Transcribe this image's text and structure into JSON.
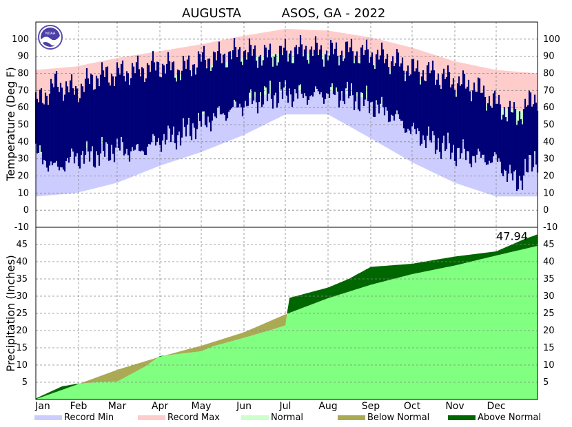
{
  "chart_data": {
    "type": "area",
    "title_left": "AUGUSTA",
    "title_right": "ASOS, GA - 2022",
    "months": [
      "Jan",
      "Feb",
      "Mar",
      "Apr",
      "May",
      "Jun",
      "Jul",
      "Aug",
      "Sep",
      "Oct",
      "Nov",
      "Dec"
    ],
    "days_per_month": [
      31,
      28,
      31,
      30,
      31,
      30,
      31,
      31,
      30,
      31,
      30,
      31
    ],
    "temperature": {
      "ylabel": "Temperature (Deg F)",
      "ylim": [
        -10,
        110
      ],
      "yticks": [
        -10,
        0,
        10,
        20,
        30,
        40,
        50,
        60,
        70,
        80,
        90,
        100
      ],
      "normal_high": {
        "x_day": [
          1,
          30,
          60,
          91,
          121,
          152,
          182,
          213,
          244,
          274,
          305,
          335,
          365
        ],
        "y": [
          57,
          61,
          67,
          76,
          83,
          89,
          92,
          91,
          86,
          78,
          69,
          60,
          57
        ]
      },
      "normal_low": {
        "x_day": [
          1,
          30,
          60,
          91,
          121,
          152,
          182,
          213,
          244,
          274,
          305,
          335,
          365
        ],
        "y": [
          33,
          35,
          41,
          48,
          56,
          65,
          70,
          70,
          65,
          52,
          42,
          35,
          33
        ]
      },
      "record_max": {
        "x_day": [
          1,
          30,
          60,
          91,
          121,
          152,
          182,
          213,
          244,
          274,
          305,
          335,
          365
        ],
        "y": [
          82,
          84,
          89,
          93,
          97,
          102,
          106,
          105,
          101,
          95,
          87,
          82,
          80
        ]
      },
      "record_min": {
        "x_day": [
          1,
          30,
          60,
          91,
          121,
          152,
          182,
          213,
          244,
          274,
          305,
          335,
          365
        ],
        "y": [
          8,
          10,
          16,
          26,
          34,
          44,
          56,
          56,
          42,
          28,
          16,
          8,
          8
        ]
      },
      "observed_high": {
        "x_day": [
          1,
          15,
          30,
          45,
          60,
          75,
          91,
          106,
          121,
          136,
          152,
          167,
          182,
          197,
          213,
          228,
          244,
          259,
          274,
          289,
          305,
          320,
          335,
          350,
          365
        ],
        "y": [
          62,
          74,
          70,
          78,
          80,
          82,
          85,
          82,
          88,
          90,
          93,
          90,
          92,
          94,
          92,
          93,
          91,
          88,
          82,
          80,
          75,
          72,
          62,
          55,
          67
        ]
      },
      "observed_low": {
        "x_day": [
          1,
          15,
          30,
          45,
          60,
          75,
          91,
          106,
          121,
          136,
          152,
          167,
          182,
          197,
          213,
          228,
          244,
          259,
          274,
          289,
          305,
          320,
          335,
          350,
          365
        ],
        "y": [
          38,
          28,
          35,
          36,
          40,
          38,
          45,
          48,
          55,
          60,
          66,
          70,
          72,
          71,
          72,
          71,
          66,
          60,
          50,
          44,
          38,
          35,
          33,
          20,
          35
        ]
      }
    },
    "precipitation": {
      "ylabel": "Precipitation (Inches)",
      "ylim": [
        0,
        50
      ],
      "yticks": [
        5,
        10,
        15,
        20,
        25,
        30,
        35,
        40,
        45
      ],
      "total_label": "47.94",
      "normal_cumulative": {
        "x_day": [
          1,
          30,
          60,
          91,
          121,
          152,
          182,
          213,
          244,
          274,
          305,
          335,
          365
        ],
        "y": [
          0.1,
          4.2,
          8.6,
          12.4,
          15.6,
          19.5,
          24.7,
          29.4,
          33.3,
          36.4,
          38.9,
          41.8,
          44.6
        ]
      },
      "observed_cumulative": {
        "x_day": [
          1,
          20,
          30,
          45,
          60,
          80,
          91,
          121,
          130,
          152,
          170,
          182,
          185,
          213,
          228,
          244,
          274,
          290,
          305,
          335,
          355,
          365
        ],
        "y": [
          0.3,
          3.8,
          4.5,
          5.0,
          5.2,
          9.5,
          12.6,
          14.0,
          15.5,
          17.9,
          20.0,
          21.5,
          29.5,
          32.5,
          35.0,
          38.5,
          39.4,
          40.5,
          41.5,
          43.0,
          46.5,
          47.94
        ]
      }
    },
    "legend": [
      {
        "label": "Record Min",
        "color": "#ccccff"
      },
      {
        "label": "Record Max",
        "color": "#ffcccc"
      },
      {
        "label": "Normal",
        "color": "#ccffcc"
      },
      {
        "label": "Below Normal",
        "color": "#aaaa55"
      },
      {
        "label": "Above Normal",
        "color": "#006600"
      }
    ],
    "colors": {
      "record_min": "#ccccff",
      "record_max": "#ffcccc",
      "normal": "#ccffcc",
      "observed": "#000077",
      "precip_normal": "#80ff80",
      "above_normal": "#006600",
      "below_normal": "#aaaa55"
    }
  }
}
